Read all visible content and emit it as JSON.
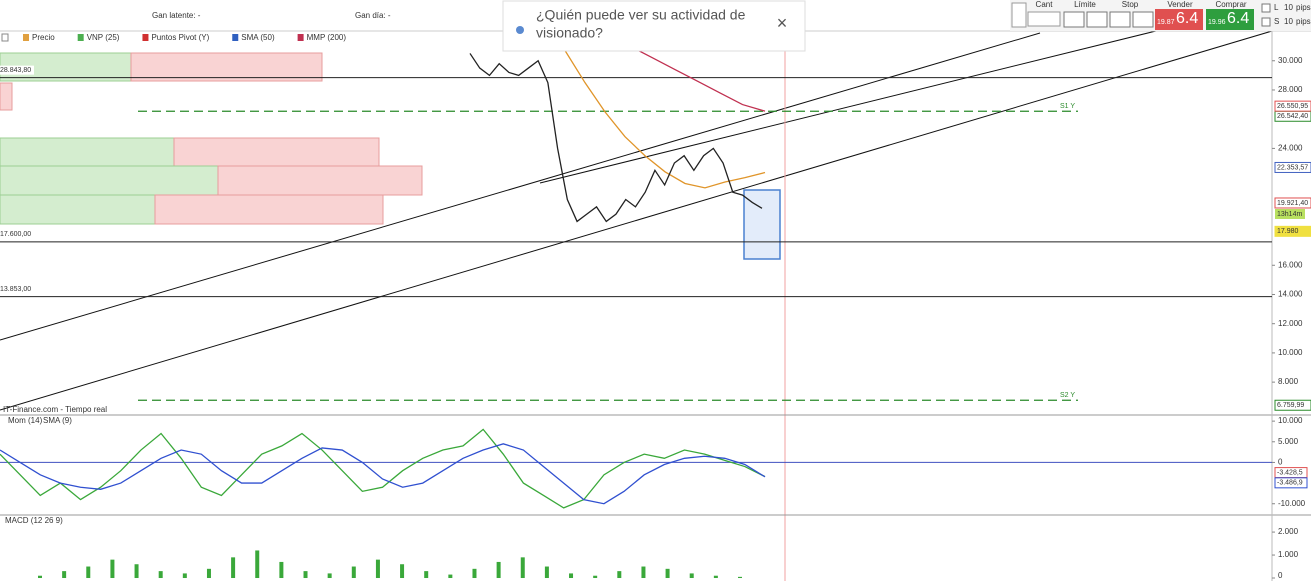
{
  "header": {
    "unrealized": "Gan latente: -",
    "daily": "Gan día: -"
  },
  "popup": {
    "lines": [
      "¿Quién puede ver su actividad de",
      "visionado?"
    ],
    "close": "×"
  },
  "order_panel": {
    "qty": "Cant",
    "limit": "Límite",
    "stop": "Stop",
    "sell": {
      "label": "Vender",
      "small": "19.87",
      "big": "6.4"
    },
    "buy": {
      "label": "Comprar",
      "small": "19.96",
      "big": "6.4"
    },
    "long": "L",
    "short": "S",
    "pips_value": "10",
    "pips": "pips"
  },
  "chart": {
    "legend": [
      "Precio",
      "VNP (25)",
      "Puntos Pivot (Y)",
      "SMA (50)",
      "MMP (200)"
    ],
    "legend_colors": [
      "#e0a040",
      "#4caf50",
      "#d03030",
      "#3060c0",
      "#c03050"
    ],
    "source": "IT-Finance.com - Tiempo real",
    "ylim": [
      5750,
      31900
    ],
    "yticks": [
      {
        "value": 30000,
        "label": "30.000"
      },
      {
        "value": 28000,
        "label": "28.000"
      },
      {
        "value": 24000,
        "label": "24.000"
      },
      {
        "value": 16000,
        "label": "16.000"
      },
      {
        "value": 14000,
        "label": "14.000"
      },
      {
        "value": 12000,
        "label": "12.000"
      },
      {
        "value": 10000,
        "label": "10.000"
      },
      {
        "value": 8000,
        "label": "8.000"
      }
    ],
    "levels": [
      {
        "value": 28843.8,
        "label": "28.843,80"
      },
      {
        "value": 17600,
        "label": "17.600,00"
      },
      {
        "value": 13853,
        "label": "13.853,00"
      }
    ],
    "pivots": [
      {
        "name": "S1 Y",
        "value": 26542.4,
        "label": "26.542,40"
      },
      {
        "name": "S2 Y",
        "value": 6759.99,
        "label": "6.759,99"
      }
    ],
    "badges": [
      {
        "value": 26550.95,
        "label": "26.550,95",
        "color": "#e05050"
      },
      {
        "value": 22353.57,
        "label": "22.353,57",
        "color": "#4060c0"
      },
      {
        "value": 19921.4,
        "label": "19.921,40",
        "color": "#e05050"
      },
      {
        "value": 17980,
        "label": "17.980",
        "color": "#f0e040"
      }
    ],
    "timer": "13h14m",
    "price": {
      "values": [
        30500,
        29500,
        29000,
        29800,
        29200,
        29000,
        29500,
        30000,
        28500,
        24000,
        20500,
        19000,
        19500,
        20000,
        19000,
        19500,
        20500,
        20000,
        21000,
        22500,
        21500,
        23000,
        23500,
        22500,
        23500,
        24000,
        23000,
        21000,
        20800,
        20300,
        19900
      ],
      "color": "#222222"
    },
    "sma50": {
      "values": [
        30700,
        28500,
        26500,
        24800,
        23500,
        22400,
        21600,
        21300,
        21700,
        22000,
        22350
      ],
      "color": "#e0952a"
    },
    "mmp200": {
      "values": [
        31000,
        30200,
        29400,
        28600,
        27800,
        27000,
        26550
      ],
      "color": "#c03050"
    }
  },
  "momentum": {
    "legend": [
      "Mom (14)",
      "SMA (9)"
    ],
    "ylim": [
      -12000,
      11000
    ],
    "yticks": [
      {
        "value": 10000,
        "label": "10.000"
      },
      {
        "value": 5000,
        "label": "5.000"
      },
      0,
      {
        "value": -10000,
        "label": "-10.000"
      }
    ],
    "mom": {
      "values": [
        2000,
        -3000,
        -8000,
        -5000,
        -9000,
        -6000,
        -2000,
        3000,
        7000,
        1000,
        -6000,
        -8000,
        -3000,
        2000,
        4000,
        7000,
        3000,
        -2000,
        -7000,
        -6000,
        -2000,
        1000,
        3000,
        4000,
        8000,
        2000,
        -5000,
        -8000,
        -11000,
        -9000,
        -3000,
        0,
        2000,
        1000,
        3000,
        2000,
        500,
        -1000,
        -3428.5
      ],
      "color": "#3aa83a"
    },
    "sma": {
      "values": [
        3000,
        0,
        -3000,
        -5000,
        -6000,
        -6500,
        -5000,
        -2000,
        1000,
        3000,
        2000,
        -2000,
        -5000,
        -5000,
        -2000,
        1000,
        3500,
        3000,
        0,
        -4000,
        -6000,
        -5000,
        -2000,
        1000,
        3000,
        4500,
        3000,
        -1000,
        -5000,
        -9000,
        -10000,
        -7000,
        -3000,
        -500,
        1000,
        1500,
        1000,
        -500,
        -3486.9
      ],
      "color": "#3050d0"
    },
    "badges": [
      {
        "value": -3428.5,
        "label": "-3.428,5",
        "color": "#e05050"
      },
      {
        "value": -3486.9,
        "label": "-3.486,9",
        "color": "#3050d0"
      }
    ]
  },
  "macd": {
    "legend": "MACD (12 26 9)",
    "ylim": [
      -130,
      2700
    ],
    "yticks": [
      {
        "value": 2000,
        "label": "2.000"
      },
      {
        "value": 1000,
        "label": "1.000"
      },
      0
    ],
    "histogram": {
      "values": [
        100,
        300,
        500,
        800,
        600,
        300,
        200,
        400,
        900,
        1200,
        700,
        300,
        200,
        500,
        800,
        600,
        300,
        150,
        400,
        700,
        900,
        500,
        200,
        100,
        300,
        500,
        400,
        200,
        100,
        50
      ],
      "color": "#3aa83a"
    }
  }
}
